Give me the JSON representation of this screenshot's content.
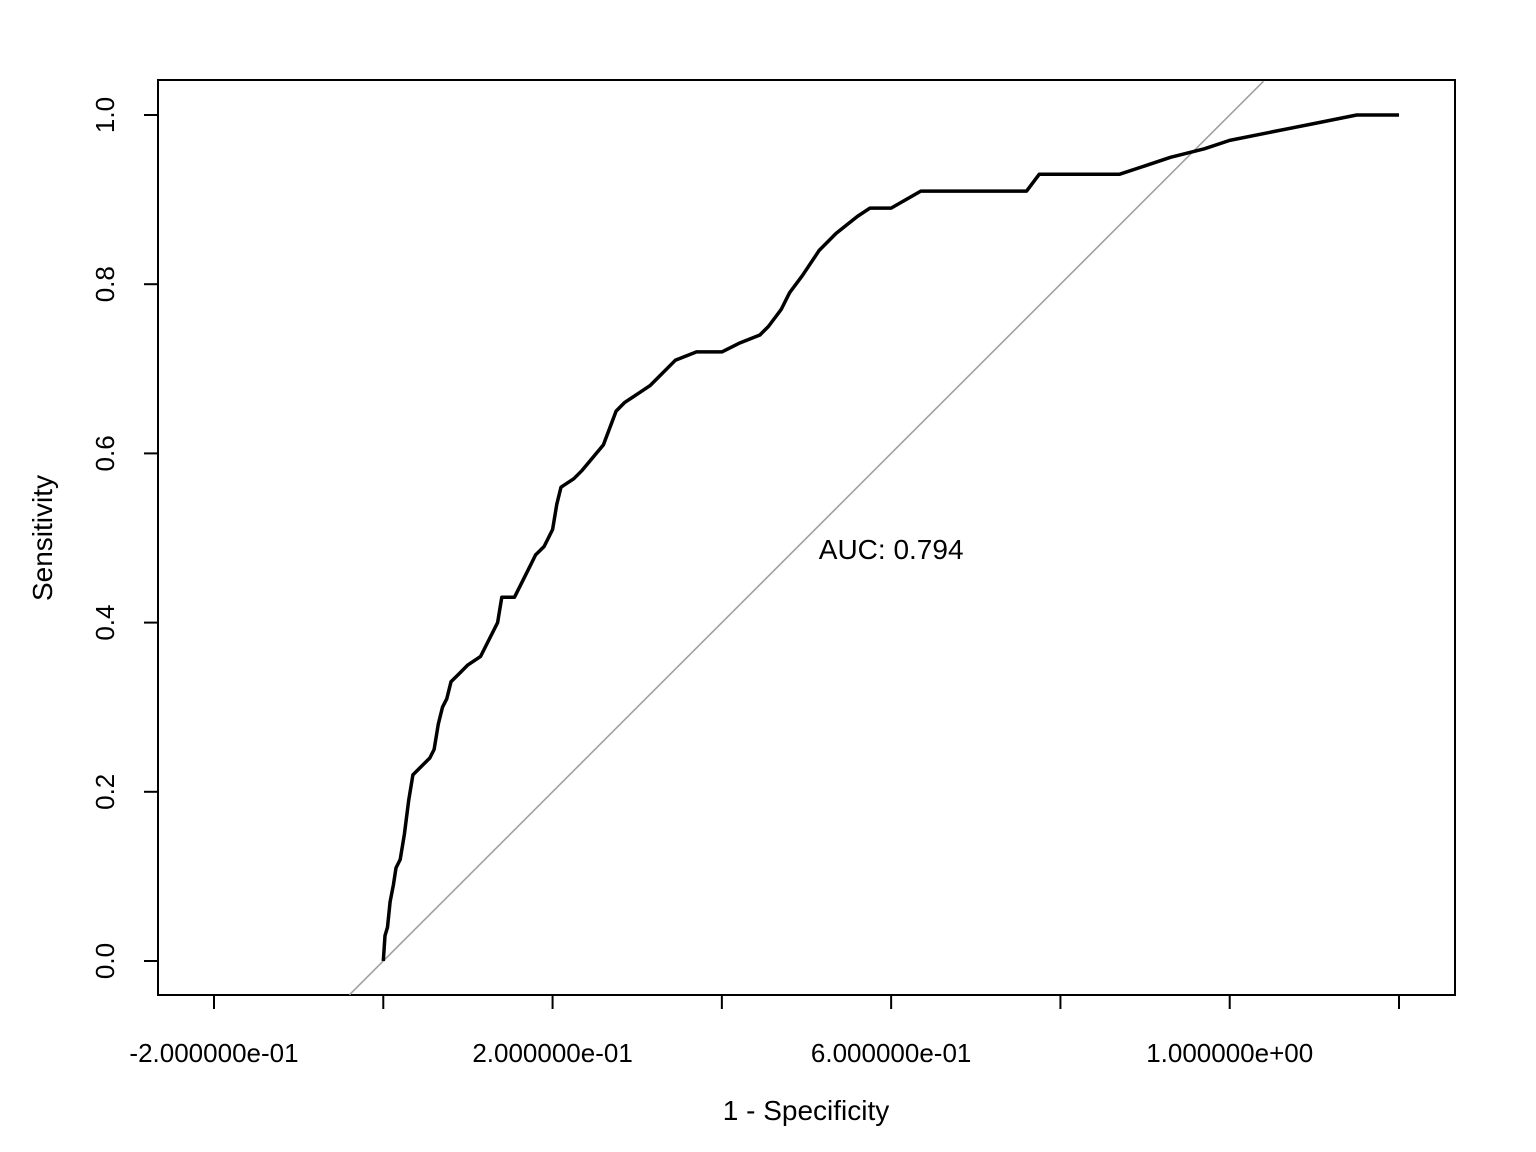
{
  "chart_data": {
    "type": "line",
    "title": "",
    "xlabel": "1 - Specificity",
    "ylabel": "Sensitivity",
    "xlim": [
      -0.2,
      1.2
    ],
    "ylim": [
      0.0,
      1.0
    ],
    "x_ticks": [
      -0.2,
      0.0,
      0.2,
      0.4,
      0.6,
      0.8,
      1.0,
      1.2
    ],
    "x_tick_labels": [
      "-2.000000e-01",
      "",
      "2.000000e-01",
      "",
      "6.000000e-01",
      "",
      "1.000000e+00",
      ""
    ],
    "y_ticks": [
      0.0,
      0.2,
      0.4,
      0.6,
      0.8,
      1.0
    ],
    "y_tick_labels": [
      "0.0",
      "0.2",
      "0.4",
      "0.6",
      "0.8",
      "1.0"
    ],
    "grid": false,
    "reference_line": {
      "color": "#a0a0a0",
      "points": [
        [
          0.0,
          0.0
        ],
        [
          1.0,
          1.0
        ]
      ]
    },
    "annotation": {
      "text": "AUC: 0.794",
      "x": 0.6,
      "y": 0.487
    },
    "series": [
      {
        "color": "#000000",
        "points": [
          [
            0.0,
            0.0
          ],
          [
            0.002,
            0.03
          ],
          [
            0.005,
            0.04
          ],
          [
            0.008,
            0.07
          ],
          [
            0.012,
            0.09
          ],
          [
            0.015,
            0.11
          ],
          [
            0.02,
            0.12
          ],
          [
            0.025,
            0.15
          ],
          [
            0.03,
            0.19
          ],
          [
            0.035,
            0.22
          ],
          [
            0.045,
            0.23
          ],
          [
            0.055,
            0.24
          ],
          [
            0.06,
            0.25
          ],
          [
            0.065,
            0.28
          ],
          [
            0.07,
            0.3
          ],
          [
            0.075,
            0.31
          ],
          [
            0.08,
            0.33
          ],
          [
            0.09,
            0.34
          ],
          [
            0.1,
            0.35
          ],
          [
            0.115,
            0.36
          ],
          [
            0.125,
            0.38
          ],
          [
            0.135,
            0.4
          ],
          [
            0.14,
            0.43
          ],
          [
            0.155,
            0.43
          ],
          [
            0.17,
            0.46
          ],
          [
            0.175,
            0.47
          ],
          [
            0.18,
            0.48
          ],
          [
            0.19,
            0.49
          ],
          [
            0.2,
            0.51
          ],
          [
            0.205,
            0.54
          ],
          [
            0.21,
            0.56
          ],
          [
            0.225,
            0.57
          ],
          [
            0.235,
            0.58
          ],
          [
            0.26,
            0.61
          ],
          [
            0.275,
            0.65
          ],
          [
            0.285,
            0.66
          ],
          [
            0.3,
            0.67
          ],
          [
            0.315,
            0.68
          ],
          [
            0.325,
            0.69
          ],
          [
            0.345,
            0.71
          ],
          [
            0.37,
            0.72
          ],
          [
            0.4,
            0.72
          ],
          [
            0.42,
            0.73
          ],
          [
            0.445,
            0.74
          ],
          [
            0.455,
            0.75
          ],
          [
            0.47,
            0.77
          ],
          [
            0.48,
            0.79
          ],
          [
            0.495,
            0.81
          ],
          [
            0.515,
            0.84
          ],
          [
            0.535,
            0.86
          ],
          [
            0.56,
            0.88
          ],
          [
            0.575,
            0.89
          ],
          [
            0.6,
            0.89
          ],
          [
            0.635,
            0.91
          ],
          [
            0.69,
            0.91
          ],
          [
            0.76,
            0.91
          ],
          [
            0.775,
            0.93
          ],
          [
            0.87,
            0.93
          ],
          [
            0.9,
            0.94
          ],
          [
            0.93,
            0.95
          ],
          [
            0.97,
            0.96
          ],
          [
            1.0,
            0.97
          ],
          [
            1.05,
            0.98
          ],
          [
            1.1,
            0.99
          ],
          [
            1.15,
            1.0
          ],
          [
            1.2,
            1.0
          ]
        ]
      }
    ]
  }
}
